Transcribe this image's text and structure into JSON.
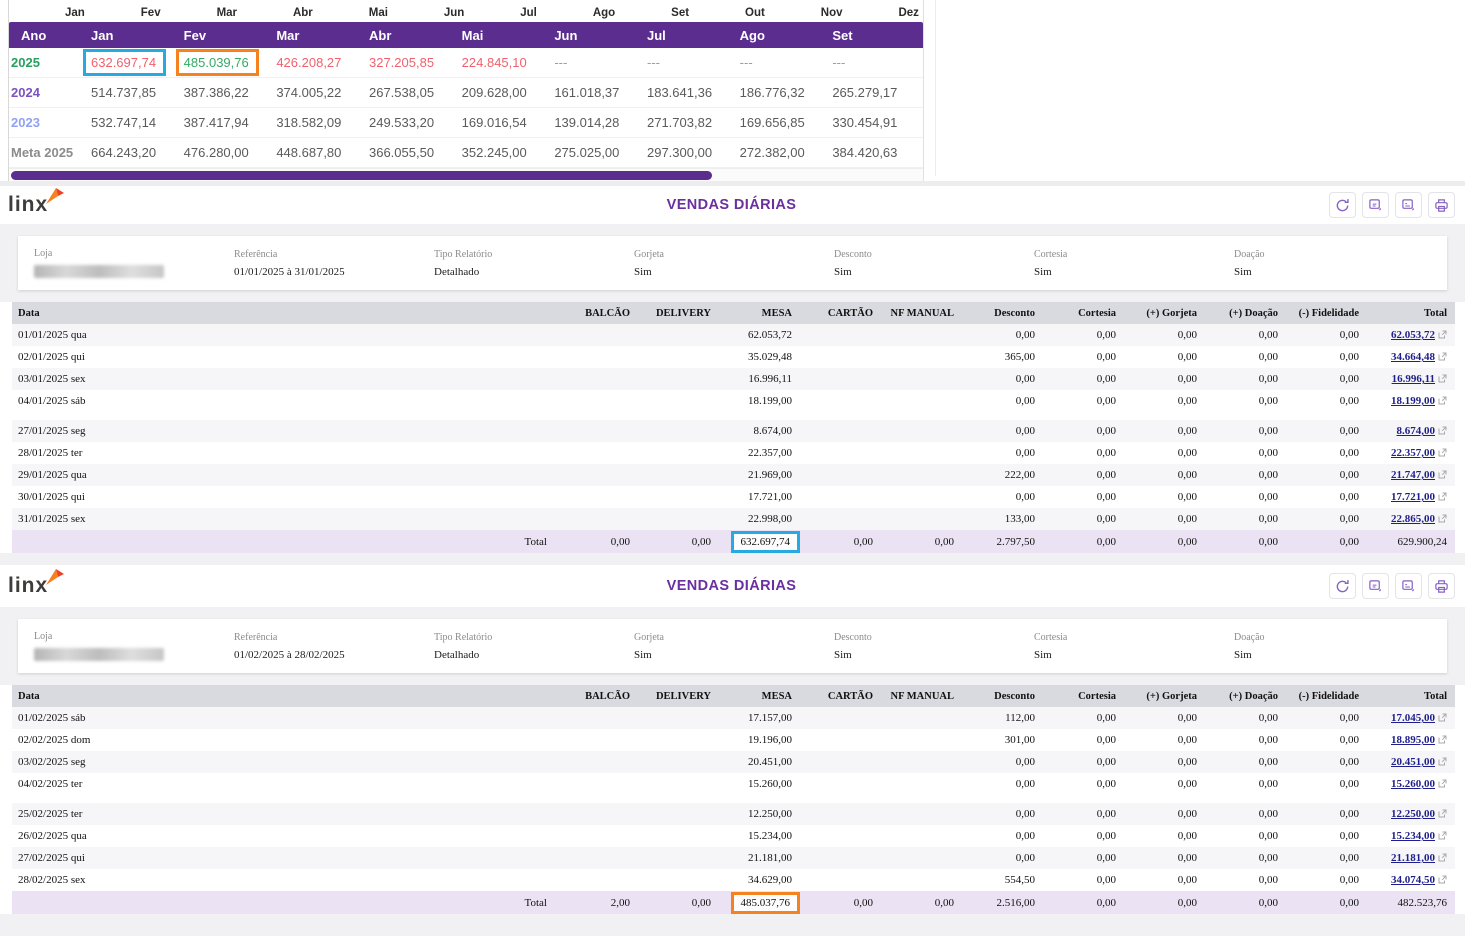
{
  "brand": {
    "logo_text": "linx"
  },
  "colors": {
    "header_purple": "#5b2d8f",
    "title_purple": "#6b2fa0",
    "highlight_blue": "#29a9e1",
    "highlight_orange": "#f5821f",
    "negative_red": "#f0616e",
    "positive_green": "#34ab62"
  },
  "monthly_widget": {
    "axis_months": [
      "Jan",
      "Fev",
      "Mar",
      "Abr",
      "Mai",
      "Jun",
      "Jul",
      "Ago",
      "Set",
      "Out",
      "Nov",
      "Dez"
    ],
    "columns": [
      "Ano",
      "Jan",
      "Fev",
      "Mar",
      "Abr",
      "Mai",
      "Jun",
      "Jul",
      "Ago",
      "Set"
    ],
    "rows": [
      {
        "label": "2025",
        "label_color": "#27a05d",
        "cells": [
          {
            "text": "632.697,74",
            "color": "#f0616e",
            "box": "#29a9e1"
          },
          {
            "text": "485.039,76",
            "color": "#34ab62",
            "box": "#f5821f"
          },
          {
            "text": "426.208,27",
            "color": "#f0616e"
          },
          {
            "text": "327.205,85",
            "color": "#f0616e"
          },
          {
            "text": "224.845,10",
            "color": "#f0616e"
          },
          {
            "text": "---",
            "color": "#9e9e9e"
          },
          {
            "text": "---",
            "color": "#9e9e9e"
          },
          {
            "text": "---",
            "color": "#9e9e9e"
          },
          {
            "text": "---",
            "color": "#9e9e9e"
          }
        ]
      },
      {
        "label": "2024",
        "label_color": "#7c52c0",
        "cells": [
          "514.737,85",
          "387.386,22",
          "374.005,22",
          "267.538,05",
          "209.628,00",
          "161.018,37",
          "183.641,36",
          "186.776,32",
          "265.279,17"
        ]
      },
      {
        "label": "2023",
        "label_color": "#93a1f2",
        "cells": [
          "532.747,14",
          "387.417,94",
          "318.582,09",
          "249.533,20",
          "169.016,54",
          "139.014,28",
          "271.703,82",
          "169.656,85",
          "330.454,91"
        ]
      },
      {
        "label": "Meta 2025",
        "label_color": "#8c8c8c",
        "cells": [
          "664.243,20",
          "476.280,00",
          "448.687,80",
          "366.055,50",
          "352.245,00",
          "275.025,00",
          "297.300,00",
          "272.382,00",
          "384.420,63"
        ]
      }
    ]
  },
  "reports": [
    {
      "title": "VENDAS DIÁRIAS",
      "info": [
        {
          "label": "Loja",
          "value": "",
          "redacted": true
        },
        {
          "label": "Referência",
          "value": "01/01/2025 à 31/01/2025"
        },
        {
          "label": "Tipo Relatório",
          "value": "Detalhado"
        },
        {
          "label": "Gorjeta",
          "value": "Sim"
        },
        {
          "label": "Desconto",
          "value": "Sim"
        },
        {
          "label": "Cortesia",
          "value": "Sim"
        },
        {
          "label": "Doação",
          "value": "Sim"
        }
      ],
      "columns": [
        "Data",
        "BALCÃO",
        "DELIVERY",
        "MESA",
        "CARTÃO",
        "NF MANUAL",
        "Desconto",
        "Cortesia",
        "(+) Gorjeta",
        "(+) Doação",
        "(-) Fidelidade",
        "Total"
      ],
      "groups": [
        [
          [
            "01/01/2025 qua",
            "",
            "",
            "62.053,72",
            "",
            "",
            "0,00",
            "0,00",
            "0,00",
            "0,00",
            "0,00",
            "62.053,72"
          ],
          [
            "02/01/2025 qui",
            "",
            "",
            "35.029,48",
            "",
            "",
            "365,00",
            "0,00",
            "0,00",
            "0,00",
            "0,00",
            "34.664,48"
          ],
          [
            "03/01/2025 sex",
            "",
            "",
            "16.996,11",
            "",
            "",
            "0,00",
            "0,00",
            "0,00",
            "0,00",
            "0,00",
            "16.996,11"
          ],
          [
            "04/01/2025 sáb",
            "",
            "",
            "18.199,00",
            "",
            "",
            "0,00",
            "0,00",
            "0,00",
            "0,00",
            "0,00",
            "18.199,00"
          ]
        ],
        [
          [
            "27/01/2025 seg",
            "",
            "",
            "8.674,00",
            "",
            "",
            "0,00",
            "0,00",
            "0,00",
            "0,00",
            "0,00",
            "8.674,00"
          ],
          [
            "28/01/2025 ter",
            "",
            "",
            "22.357,00",
            "",
            "",
            "0,00",
            "0,00",
            "0,00",
            "0,00",
            "0,00",
            "22.357,00"
          ],
          [
            "29/01/2025 qua",
            "",
            "",
            "21.969,00",
            "",
            "",
            "222,00",
            "0,00",
            "0,00",
            "0,00",
            "0,00",
            "21.747,00"
          ],
          [
            "30/01/2025 qui",
            "",
            "",
            "17.721,00",
            "",
            "",
            "0,00",
            "0,00",
            "0,00",
            "0,00",
            "0,00",
            "17.721,00"
          ],
          [
            "31/01/2025 sex",
            "",
            "",
            "22.998,00",
            "",
            "",
            "133,00",
            "0,00",
            "0,00",
            "0,00",
            "0,00",
            "22.865,00"
          ]
        ]
      ],
      "total_row": {
        "cells": [
          "Total",
          "0,00",
          "0,00",
          "632.697,74",
          "0,00",
          "0,00",
          "2.797,50",
          "0,00",
          "0,00",
          "0,00",
          "0,00",
          "629.900,24"
        ],
        "highlight_index": 3,
        "highlight_color": "#29a9e1"
      }
    },
    {
      "title": "VENDAS DIÁRIAS",
      "info": [
        {
          "label": "Loja",
          "value": "",
          "redacted": true
        },
        {
          "label": "Referência",
          "value": "01/02/2025 à 28/02/2025"
        },
        {
          "label": "Tipo Relatório",
          "value": "Detalhado"
        },
        {
          "label": "Gorjeta",
          "value": "Sim"
        },
        {
          "label": "Desconto",
          "value": "Sim"
        },
        {
          "label": "Cortesia",
          "value": "Sim"
        },
        {
          "label": "Doação",
          "value": "Sim"
        }
      ],
      "columns": [
        "Data",
        "BALCÃO",
        "DELIVERY",
        "MESA",
        "CARTÃO",
        "NF MANUAL",
        "Desconto",
        "Cortesia",
        "(+) Gorjeta",
        "(+) Doação",
        "(-) Fidelidade",
        "Total"
      ],
      "groups": [
        [
          [
            "01/02/2025 sáb",
            "",
            "",
            "17.157,00",
            "",
            "",
            "112,00",
            "0,00",
            "0,00",
            "0,00",
            "0,00",
            "17.045,00"
          ],
          [
            "02/02/2025 dom",
            "",
            "",
            "19.196,00",
            "",
            "",
            "301,00",
            "0,00",
            "0,00",
            "0,00",
            "0,00",
            "18.895,00"
          ],
          [
            "03/02/2025 seg",
            "",
            "",
            "20.451,00",
            "",
            "",
            "0,00",
            "0,00",
            "0,00",
            "0,00",
            "0,00",
            "20.451,00"
          ],
          [
            "04/02/2025 ter",
            "",
            "",
            "15.260,00",
            "",
            "",
            "0,00",
            "0,00",
            "0,00",
            "0,00",
            "0,00",
            "15.260,00"
          ]
        ],
        [
          [
            "25/02/2025 ter",
            "",
            "",
            "12.250,00",
            "",
            "",
            "0,00",
            "0,00",
            "0,00",
            "0,00",
            "0,00",
            "12.250,00"
          ],
          [
            "26/02/2025 qua",
            "",
            "",
            "15.234,00",
            "",
            "",
            "0,00",
            "0,00",
            "0,00",
            "0,00",
            "0,00",
            "15.234,00"
          ],
          [
            "27/02/2025 qui",
            "",
            "",
            "21.181,00",
            "",
            "",
            "0,00",
            "0,00",
            "0,00",
            "0,00",
            "0,00",
            "21.181,00"
          ],
          [
            "28/02/2025 sex",
            "",
            "",
            "34.629,00",
            "",
            "",
            "554,50",
            "0,00",
            "0,00",
            "0,00",
            "0,00",
            "34.074,50"
          ]
        ]
      ],
      "total_row": {
        "cells": [
          "Total",
          "2,00",
          "0,00",
          "485.037,76",
          "0,00",
          "0,00",
          "2.516,00",
          "0,00",
          "0,00",
          "0,00",
          "0,00",
          "482.523,76"
        ],
        "highlight_index": 3,
        "highlight_color": "#f5821f"
      }
    }
  ],
  "toolbar_icons": [
    "refresh-icon",
    "export-file-icon",
    "export-file-alt-icon",
    "printer-icon"
  ]
}
